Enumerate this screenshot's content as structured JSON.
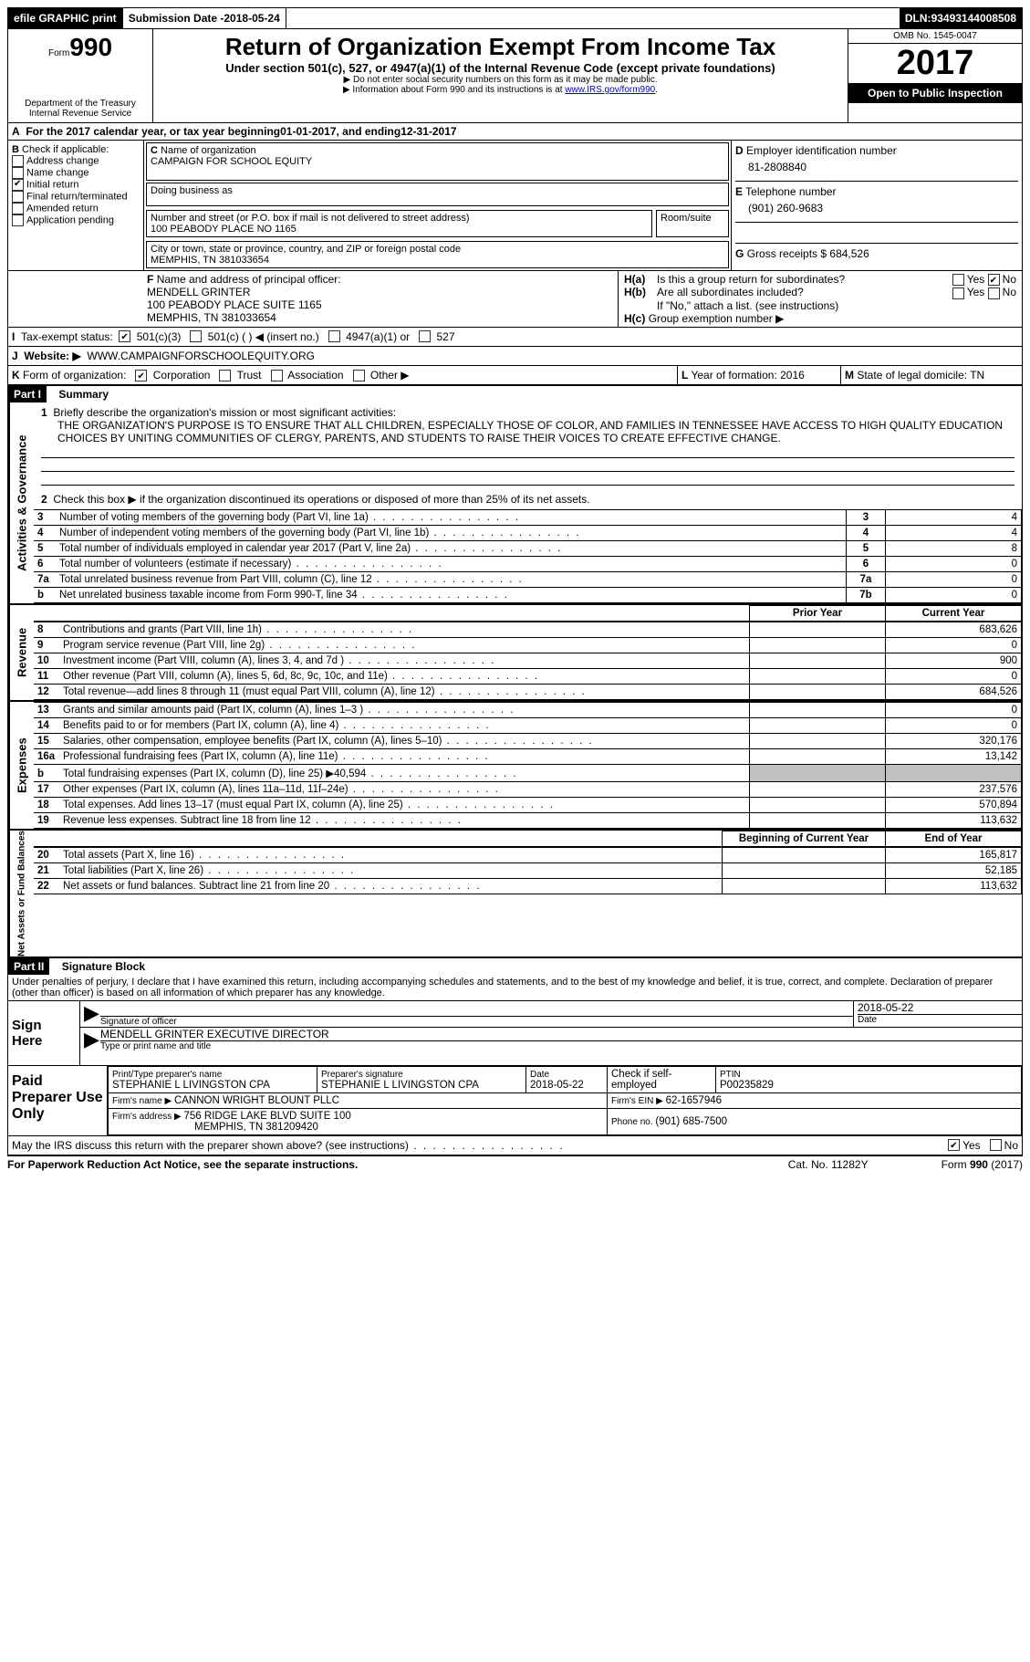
{
  "topbar": {
    "efile": "efile GRAPHIC print",
    "submission_label": "Submission Date - ",
    "submission_date": "2018-05-24",
    "dln_label": "DLN: ",
    "dln": "93493144008508"
  },
  "header": {
    "form_label": "Form",
    "form_no": "990",
    "dept1": "Department of the Treasury",
    "dept2": "Internal Revenue Service",
    "title": "Return of Organization Exempt From Income Tax",
    "subtitle": "Under section 501(c), 527, or 4947(a)(1) of the Internal Revenue Code (except private foundations)",
    "note1": "▶ Do not enter social security numbers on this form as it may be made public.",
    "note2_a": "▶ Information about Form 990 and its instructions is at ",
    "note2_link": "www.IRS.gov/form990",
    "omb": "OMB No. 1545-0047",
    "year": "2017",
    "open": "Open to Public Inspection"
  },
  "A": {
    "text_a": "For the 2017 calendar year, or tax year beginning ",
    "begin": "01-01-2017",
    "text_b": "  , and ending ",
    "end": "12-31-2017"
  },
  "B": {
    "label": "Check if applicable:",
    "items": [
      "Address change",
      "Name change",
      "Initial return",
      "Final return/terminated",
      "Amended return",
      "Application pending"
    ],
    "checked_index": 2
  },
  "C": {
    "name_label": "Name of organization",
    "name": "CAMPAIGN FOR SCHOOL EQUITY",
    "dba_label": "Doing business as",
    "street_label": "Number and street (or P.O. box if mail is not delivered to street address)",
    "room_label": "Room/suite",
    "street": "100 PEABODY PLACE NO 1165",
    "city_label": "City or town, state or province, country, and ZIP or foreign postal code",
    "city": "MEMPHIS, TN  381033654"
  },
  "D": {
    "label": "Employer identification number",
    "value": "81-2808840"
  },
  "E": {
    "label": "Telephone number",
    "value": "(901) 260-9683"
  },
  "G": {
    "label": "Gross receipts $ ",
    "value": "684,526"
  },
  "F": {
    "label": "Name and address of principal officer:",
    "name": "MENDELL GRINTER",
    "street": "100 PEABODY PLACE SUITE 1165",
    "city": "MEMPHIS, TN  381033654"
  },
  "H": {
    "a": "Is this a group return for subordinates?",
    "b": "Are all subordinates included?",
    "b_note": "If \"No,\" attach a list. (see instructions)",
    "c": "Group exemption number ▶"
  },
  "I": {
    "label": "Tax-exempt status:",
    "opts": [
      "501(c)(3)",
      "501(c) (  ) ◀ (insert no.)",
      "4947(a)(1) or",
      "527"
    ]
  },
  "J": {
    "label": "Website: ▶",
    "value": "WWW.CAMPAIGNFORSCHOOLEQUITY.ORG"
  },
  "K": {
    "label": "Form of organization:",
    "opts": [
      "Corporation",
      "Trust",
      "Association",
      "Other ▶"
    ]
  },
  "L": {
    "label": "Year of formation: ",
    "value": "2016"
  },
  "M": {
    "label": "State of legal domicile: ",
    "value": "TN"
  },
  "part1": {
    "title": "Part I",
    "subtitle": "Summary",
    "q1": "Briefly describe the organization's mission or most significant activities:",
    "mission": "THE ORGANIZATION'S PURPOSE IS TO ENSURE THAT ALL CHILDREN, ESPECIALLY THOSE OF COLOR, AND FAMILIES IN TENNESSEE HAVE ACCESS TO HIGH QUALITY EDUCATION CHOICES BY UNITING COMMUNITIES OF CLERGY, PARENTS, AND STUDENTS TO RAISE THEIR VOICES TO CREATE EFFECTIVE CHANGE.",
    "q2": "Check this box ▶        if the organization discontinued its operations or disposed of more than 25% of its net assets.",
    "governance_label": "Activities & Governance",
    "revenue_label": "Revenue",
    "expenses_label": "Expenses",
    "netassets_label": "Net Assets or Fund Balances",
    "rows_gov": [
      {
        "n": "3",
        "t": "Number of voting members of the governing body (Part VI, line 1a)",
        "box": "3",
        "v": "4"
      },
      {
        "n": "4",
        "t": "Number of independent voting members of the governing body (Part VI, line 1b)",
        "box": "4",
        "v": "4"
      },
      {
        "n": "5",
        "t": "Total number of individuals employed in calendar year 2017 (Part V, line 2a)",
        "box": "5",
        "v": "8"
      },
      {
        "n": "6",
        "t": "Total number of volunteers (estimate if necessary)",
        "box": "6",
        "v": "0"
      },
      {
        "n": "7a",
        "t": "Total unrelated business revenue from Part VIII, column (C), line 12",
        "box": "7a",
        "v": "0"
      },
      {
        "n": "b",
        "t": "Net unrelated business taxable income from Form 990-T, line 34",
        "box": "7b",
        "v": "0"
      }
    ],
    "col_headers": {
      "prior": "Prior Year",
      "current": "Current Year"
    },
    "rows_rev": [
      {
        "n": "8",
        "t": "Contributions and grants (Part VIII, line 1h)",
        "p": "",
        "c": "683,626"
      },
      {
        "n": "9",
        "t": "Program service revenue (Part VIII, line 2g)",
        "p": "",
        "c": "0"
      },
      {
        "n": "10",
        "t": "Investment income (Part VIII, column (A), lines 3, 4, and 7d )",
        "p": "",
        "c": "900"
      },
      {
        "n": "11",
        "t": "Other revenue (Part VIII, column (A), lines 5, 6d, 8c, 9c, 10c, and 11e)",
        "p": "",
        "c": "0"
      },
      {
        "n": "12",
        "t": "Total revenue—add lines 8 through 11 (must equal Part VIII, column (A), line 12)",
        "p": "",
        "c": "684,526"
      }
    ],
    "rows_exp": [
      {
        "n": "13",
        "t": "Grants and similar amounts paid (Part IX, column (A), lines 1–3 )",
        "p": "",
        "c": "0"
      },
      {
        "n": "14",
        "t": "Benefits paid to or for members (Part IX, column (A), line 4)",
        "p": "",
        "c": "0"
      },
      {
        "n": "15",
        "t": "Salaries, other compensation, employee benefits (Part IX, column (A), lines 5–10)",
        "p": "",
        "c": "320,176"
      },
      {
        "n": "16a",
        "t": "Professional fundraising fees (Part IX, column (A), line 11e)",
        "p": "",
        "c": "13,142"
      },
      {
        "n": "b",
        "t": "Total fundraising expenses (Part IX, column (D), line 25) ▶40,594",
        "p": "SHADE",
        "c": "SHADE"
      },
      {
        "n": "17",
        "t": "Other expenses (Part IX, column (A), lines 11a–11d, 11f–24e)",
        "p": "",
        "c": "237,576"
      },
      {
        "n": "18",
        "t": "Total expenses. Add lines 13–17 (must equal Part IX, column (A), line 25)",
        "p": "",
        "c": "570,894"
      },
      {
        "n": "19",
        "t": "Revenue less expenses. Subtract line 18 from line 12",
        "p": "",
        "c": "113,632"
      }
    ],
    "col_headers2": {
      "begin": "Beginning of Current Year",
      "end": "End of Year"
    },
    "rows_net": [
      {
        "n": "20",
        "t": "Total assets (Part X, line 16)",
        "p": "",
        "c": "165,817"
      },
      {
        "n": "21",
        "t": "Total liabilities (Part X, line 26)",
        "p": "",
        "c": "52,185"
      },
      {
        "n": "22",
        "t": "Net assets or fund balances. Subtract line 21 from line 20",
        "p": "",
        "c": "113,632"
      }
    ]
  },
  "part2": {
    "title": "Part II",
    "subtitle": "Signature Block",
    "declaration": "Under penalties of perjury, I declare that I have examined this return, including accompanying schedules and statements, and to the best of my knowledge and belief, it is true, correct, and complete. Declaration of preparer (other than officer) is based on all information of which preparer has any knowledge.",
    "sign_here": "Sign Here",
    "sig_officer": "Signature of officer",
    "sig_date": "2018-05-22",
    "date_label": "Date",
    "officer_name": "MENDELL GRINTER EXECUTIVE DIRECTOR",
    "type_name": "Type or print name and title",
    "paid": "Paid Preparer Use Only",
    "prep_name_label": "Print/Type preparer's name",
    "prep_name": "STEPHANIE L LIVINGSTON CPA",
    "prep_sig_label": "Preparer's signature",
    "prep_sig": "STEPHANIE L LIVINGSTON CPA",
    "prep_date_label": "Date",
    "prep_date": "2018-05-22",
    "check_self": "Check         if self-employed",
    "ptin_label": "PTIN",
    "ptin": "P00235829",
    "firm_name_label": "Firm's name    ▶ ",
    "firm_name": "CANNON WRIGHT BLOUNT PLLC",
    "firm_ein_label": "Firm's EIN ▶ ",
    "firm_ein": "62-1657946",
    "firm_addr_label": "Firm's address ▶ ",
    "firm_addr1": "756 RIDGE LAKE BLVD SUITE 100",
    "firm_addr2": "MEMPHIS, TN  381209420",
    "phone_label": "Phone no. ",
    "phone": "(901) 685-7500",
    "discuss": "May the IRS discuss this return with the preparer shown above? (see instructions)",
    "paperwork": "For Paperwork Reduction Act Notice, see the separate instructions.",
    "cat": "Cat. No. 11282Y",
    "form_footer": "Form 990 (2017)"
  },
  "yes": "Yes",
  "no": "No"
}
